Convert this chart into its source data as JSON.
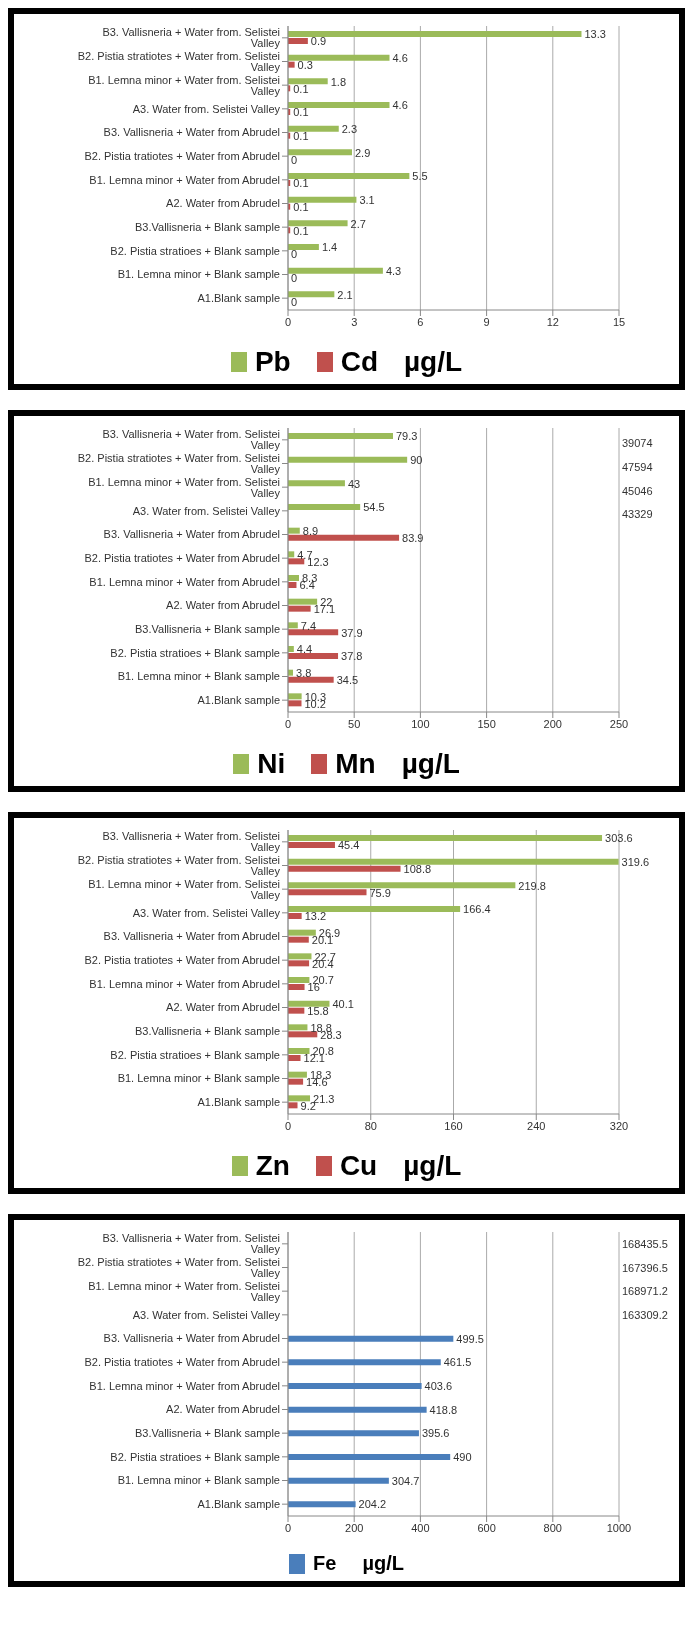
{
  "chart_data": [
    {
      "type": "bar",
      "orientation": "horizontal",
      "xlabel": "µg/L",
      "legend": "bottom",
      "grid": "x",
      "data_labels": true,
      "xlim": [
        0,
        15
      ],
      "xticks": [
        0,
        3,
        6,
        9,
        12,
        15
      ],
      "categories": [
        "B3. Vallisneria + Water from. Selistei Valley",
        "B2. Pistia stratiotes + Water from. Selistei Valley",
        "B1. Lemna minor + Water from. Selistei Valley",
        "A3. Water from. Selistei Valley",
        "B3. Vallisneria + Water from Abrudel",
        "B2. Pistia tratiotes + Water from Abrudel",
        "B1. Lemna minor + Water from Abrudel",
        "A2. Water from Abrudel",
        "B3.Vallisneria + Blank sample",
        "B2. Pistia stratioes + Blank sample",
        "B1. Lemna minor + Blank sample",
        "A1.Blank sample"
      ],
      "series": [
        {
          "name": "Pb",
          "color": "#9bbb59",
          "values": [
            13.3,
            4.6,
            1.8,
            4.6,
            2.3,
            2.9,
            5.5,
            3.1,
            2.7,
            1.4,
            4.3,
            2.1
          ]
        },
        {
          "name": "Cd",
          "color": "#c0504d",
          "values": [
            0.9,
            0.3,
            0.1,
            0.1,
            0.1,
            0,
            0.1,
            0.1,
            0.1,
            0,
            0,
            0
          ]
        }
      ]
    },
    {
      "type": "bar",
      "orientation": "horizontal",
      "xlabel": "µg/L",
      "legend": "bottom",
      "grid": "x",
      "data_labels": true,
      "xlim": [
        0,
        250
      ],
      "xticks": [
        0,
        50,
        100,
        150,
        200,
        250
      ],
      "categories": [
        "B3. Vallisneria + Water from. Selistei Valley",
        "B2. Pistia stratiotes + Water from. Selistei Valley",
        "B1. Lemna minor + Water from. Selistei Valley",
        "A3. Water from. Selistei Valley",
        "B3. Vallisneria + Water from Abrudel",
        "B2. Pistia tratiotes + Water from Abrudel",
        "B1. Lemna minor + Water from Abrudel",
        "A2. Water from Abrudel",
        "B3.Vallisneria + Blank sample",
        "B2. Pistia stratioes + Blank sample",
        "B1. Lemna minor + Blank sample",
        "A1.Blank sample"
      ],
      "series": [
        {
          "name": "Ni",
          "color": "#9bbb59",
          "values": [
            79.3,
            90,
            43,
            54.5,
            8.9,
            4.7,
            8.3,
            22,
            7.4,
            4.4,
            3.8,
            10.3
          ]
        },
        {
          "name": "Mn",
          "color": "#c0504d",
          "values": [
            null,
            null,
            null,
            null,
            83.9,
            12.3,
            6.4,
            17.1,
            37.9,
            37.8,
            34.5,
            10.2
          ],
          "value_labels": [
            "39074",
            "47594",
            "45046",
            "43329",
            "83.9",
            "12.3",
            "6.4",
            "17.1",
            "37.9",
            "37.8",
            "34.5",
            "10.2"
          ]
        }
      ]
    },
    {
      "type": "bar",
      "orientation": "horizontal",
      "xlabel": "µg/L",
      "legend": "bottom",
      "grid": "x",
      "data_labels": true,
      "xlim": [
        0,
        320
      ],
      "xticks": [
        0,
        80,
        160,
        240,
        320
      ],
      "categories": [
        "B3. Vallisneria + Water from. Selistei Valley",
        "B2. Pistia stratiotes + Water from. Selistei Valley",
        "B1. Lemna minor + Water from. Selistei Valley",
        "A3. Water from. Selistei Valley",
        "B3. Vallisneria + Water from Abrudel",
        "B2. Pistia tratiotes + Water from Abrudel",
        "B1. Lemna minor + Water from Abrudel",
        "A2. Water from Abrudel",
        "B3.Vallisneria + Blank sample",
        "B2. Pistia stratioes + Blank sample",
        "B1. Lemna minor + Blank sample",
        "A1.Blank sample"
      ],
      "series": [
        {
          "name": "Zn",
          "color": "#9bbb59",
          "values": [
            303.6,
            319.6,
            219.8,
            166.4,
            26.9,
            22.7,
            20.7,
            40.1,
            18.8,
            20.8,
            18.3,
            21.3
          ]
        },
        {
          "name": "Cu",
          "color": "#c0504d",
          "values": [
            45.4,
            108.8,
            75.9,
            13.2,
            20.1,
            20.4,
            16,
            15.8,
            28.3,
            12.1,
            14.6,
            9.2
          ]
        }
      ]
    },
    {
      "type": "bar",
      "orientation": "horizontal",
      "xlabel": "µg/L",
      "legend": "bottom",
      "grid": "x",
      "data_labels": true,
      "xlim": [
        0,
        1000
      ],
      "xticks": [
        0,
        200,
        400,
        600,
        800,
        1000
      ],
      "categories": [
        "B3. Vallisneria + Water from. Selistei Valley",
        "B2. Pistia stratiotes + Water from. Selistei Valley",
        "B1. Lemna minor + Water from. Selistei Valley",
        "A3. Water from. Selistei Valley",
        "B3. Vallisneria + Water from Abrudel",
        "B2. Pistia tratiotes + Water from Abrudel",
        "B1. Lemna minor + Water from Abrudel",
        "A2. Water from Abrudel",
        "B3.Vallisneria + Blank sample",
        "B2. Pistia stratioes + Blank sample",
        "B1. Lemna minor + Blank sample",
        "A1.Blank sample"
      ],
      "series": [
        {
          "name": "Fe",
          "color": "#4a7ebb",
          "values": [
            null,
            null,
            null,
            null,
            499.5,
            461.5,
            403.6,
            418.8,
            395.6,
            490,
            304.7,
            204.2
          ],
          "value_labels": [
            "168435.5",
            "167396.5",
            "168971.2",
            "163309.2",
            "499.5",
            "461.5",
            "403.6",
            "418.8",
            "395.6",
            "490",
            "304.7",
            "204.2"
          ]
        }
      ]
    }
  ]
}
